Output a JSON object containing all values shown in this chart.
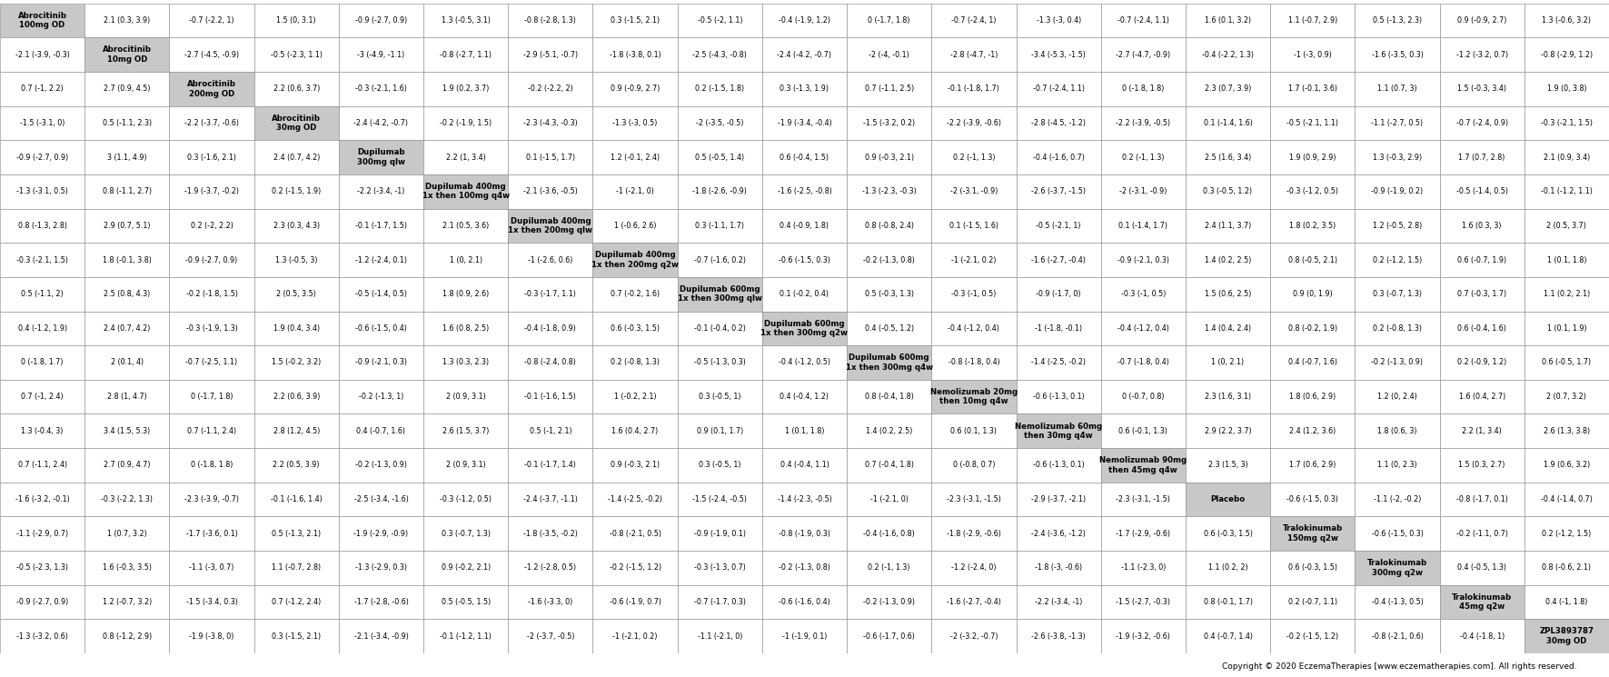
{
  "n": 19,
  "cell_data": [
    [
      "Abrocitinib\n100mg OD",
      "2.1 (0.3, 3.9)",
      "-0.7 (-2.2, 1)",
      "1.5 (0, 3.1)",
      "-0.9 (-2.7, 0.9)",
      "1.3 (-0.5, 3.1)",
      "-0.8 (-2.8, 1.3)",
      "0.3 (-1.5, 2.1)",
      "-0.5 (-2, 1.1)",
      "-0.4 (-1.9, 1.2)",
      "0 (-1.7, 1.8)",
      "-0.7 (-2.4, 1)",
      "-1.3 (-3, 0.4)",
      "-0.7 (-2.4, 1.1)",
      "1.6 (0.1, 3.2)",
      "1.1 (-0.7, 2.9)",
      "0.5 (-1.3, 2.3)",
      "0.9 (-0.9, 2.7)",
      "1.3 (-0.6, 3.2)"
    ],
    [
      "-2.1 (-3.9, -0.3)",
      "Abrocitinib\n10mg OD",
      "-2.7 (-4.5, -0.9)",
      "-0.5 (-2.3, 1.1)",
      "-3 (-4.9, -1.1)",
      "-0.8 (-2.7, 1.1)",
      "-2.9 (-5.1, -0.7)",
      "-1.8 (-3.8, 0.1)",
      "-2.5 (-4.3, -0.8)",
      "-2.4 (-4.2, -0.7)",
      "-2 (-4, -0.1)",
      "-2.8 (-4.7, -1)",
      "-3.4 (-5.3, -1.5)",
      "-2.7 (-4.7, -0.9)",
      "-0.4 (-2.2, 1.3)",
      "-1 (-3, 0.9)",
      "-1.6 (-3.5, 0.3)",
      "-1.2 (-3.2, 0.7)",
      "-0.8 (-2.9, 1.2)"
    ],
    [
      "0.7 (-1, 2.2)",
      "2.7 (0.9, 4.5)",
      "Abrocitinib\n200mg OD",
      "2.2 (0.6, 3.7)",
      "-0.3 (-2.1, 1.6)",
      "1.9 (0.2, 3.7)",
      "-0.2 (-2.2, 2)",
      "0.9 (-0.9, 2.7)",
      "0.2 (-1.5, 1.8)",
      "0.3 (-1.3, 1.9)",
      "0.7 (-1.1, 2.5)",
      "-0.1 (-1.8, 1.7)",
      "-0.7 (-2.4, 1.1)",
      "0 (-1.8, 1.8)",
      "2.3 (0.7, 3.9)",
      "1.7 (-0.1, 3.6)",
      "1.1 (0.7, 3)",
      "1.5 (-0.3, 3.4)",
      "1.9 (0, 3.8)"
    ],
    [
      "-1.5 (-3.1, 0)",
      "0.5 (-1.1, 2.3)",
      "-2.2 (-3.7, -0.6)",
      "Abrocitinib\n30mg OD",
      "-2.4 (-4.2, -0.7)",
      "-0.2 (-1.9, 1.5)",
      "-2.3 (-4.3, -0.3)",
      "-1.3 (-3, 0.5)",
      "-2 (-3.5, -0.5)",
      "-1.9 (-3.4, -0.4)",
      "-1.5 (-3.2, 0.2)",
      "-2.2 (-3.9, -0.6)",
      "-2.8 (-4.5, -1.2)",
      "-2.2 (-3.9, -0.5)",
      "0.1 (-1.4, 1.6)",
      "-0.5 (-2.1, 1.1)",
      "-1.1 (-2.7, 0.5)",
      "-0.7 (-2.4, 0.9)",
      "-0.3 (-2.1, 1.5)"
    ],
    [
      "-0.9 (-2.7, 0.9)",
      "3 (1.1, 4.9)",
      "0.3 (-1.6, 2.1)",
      "2.4 (0.7, 4.2)",
      "Dupilumab\n300mg qlw",
      "2.2 (1, 3.4)",
      "0.1 (-1.5, 1.7)",
      "1.2 (-0.1, 2.4)",
      "0.5 (-0.5, 1.4)",
      "0.6 (-0.4, 1.5)",
      "0.9 (-0.3, 2.1)",
      "0.2 (-1, 1.3)",
      "-0.4 (-1.6, 0.7)",
      "0.2 (-1, 1.3)",
      "2.5 (1.6, 3.4)",
      "1.9 (0.9, 2.9)",
      "1.3 (-0.3, 2.9)",
      "1.7 (0.7, 2.8)",
      "2.1 (0.9, 3.4)"
    ],
    [
      "-1.3 (-3.1, 0.5)",
      "0.8 (-1.1, 2.7)",
      "-1.9 (-3.7, -0.2)",
      "0.2 (-1.5, 1.9)",
      "-2.2 (-3.4, -1)",
      "Dupilumab 400mg\n1x then 100mg q4w",
      "-2.1 (-3.6, -0.5)",
      "-1 (-2.1, 0)",
      "-1.8 (-2.6, -0.9)",
      "-1.6 (-2.5, -0.8)",
      "-1.3 (-2.3, -0.3)",
      "-2 (-3.1, -0.9)",
      "-2.6 (-3.7, -1.5)",
      "-2 (-3.1, -0.9)",
      "0.3 (-0.5, 1.2)",
      "-0.3 (-1.2, 0.5)",
      "-0.9 (-1.9, 0.2)",
      "-0.5 (-1.4, 0.5)",
      "-0.1 (-1.2, 1.1)"
    ],
    [
      "0.8 (-1.3, 2.8)",
      "2.9 (0.7, 5.1)",
      "0.2 (-2, 2.2)",
      "2.3 (0.3, 4.3)",
      "-0.1 (-1.7, 1.5)",
      "2.1 (0.5, 3.6)",
      "Dupilumab 400mg\n1x then 200mg qlw",
      "1 (-0.6, 2.6)",
      "0.3 (-1.1, 1.7)",
      "0.4 (-0.9, 1.8)",
      "0.8 (-0.8, 2.4)",
      "0.1 (-1.5, 1.6)",
      "-0.5 (-2.1, 1)",
      "0.1 (-1.4, 1.7)",
      "2.4 (1.1, 3.7)",
      "1.8 (0.2, 3.5)",
      "1.2 (-0.5, 2.8)",
      "1.6 (0.3, 3)",
      "2 (0.5, 3.7)"
    ],
    [
      "-0.3 (-2.1, 1.5)",
      "1.8 (-0.1, 3.8)",
      "-0.9 (-2.7, 0.9)",
      "1.3 (-0.5, 3)",
      "-1.2 (-2.4, 0.1)",
      "1 (0, 2.1)",
      "-1 (-2.6, 0.6)",
      "Dupilumab 400mg\n1x then 200mg q2w",
      "-0.7 (-1.6, 0.2)",
      "-0.6 (-1.5, 0.3)",
      "-0.2 (-1.3, 0.8)",
      "-1 (-2.1, 0.2)",
      "-1.6 (-2.7, -0.4)",
      "-0.9 (-2.1, 0.3)",
      "1.4 (0.2, 2.5)",
      "0.8 (-0.5, 2.1)",
      "0.2 (-1.2, 1.5)",
      "0.6 (-0.7, 1.9)",
      "1 (0.1, 1.8)"
    ],
    [
      "0.5 (-1.1, 2)",
      "2.5 (0.8, 4.3)",
      "-0.2 (-1.8, 1.5)",
      "2 (0.5, 3.5)",
      "-0.5 (-1.4, 0.5)",
      "1.8 (0.9, 2.6)",
      "-0.3 (-1.7, 1.1)",
      "0.7 (-0.2, 1.6)",
      "Dupilumab 600mg\n1x then 300mg qlw",
      "0.1 (-0.2, 0.4)",
      "0.5 (-0.3, 1.3)",
      "-0.3 (-1, 0.5)",
      "-0.9 (-1.7, 0)",
      "-0.3 (-1, 0.5)",
      "1.5 (0.6, 2.5)",
      "0.9 (0, 1.9)",
      "0.3 (-0.7, 1.3)",
      "0.7 (-0.3, 1.7)",
      "1.1 (0.2, 2.1)"
    ],
    [
      "0.4 (-1.2, 1.9)",
      "2.4 (0.7, 4.2)",
      "-0.3 (-1.9, 1.3)",
      "1.9 (0.4, 3.4)",
      "-0.6 (-1.5, 0.4)",
      "1.6 (0.8, 2.5)",
      "-0.4 (-1.8, 0.9)",
      "0.6 (-0.3, 1.5)",
      "-0.1 (-0.4, 0.2)",
      "Dupilumab 600mg\n1x then 300mg q2w",
      "0.4 (-0.5, 1.2)",
      "-0.4 (-1.2, 0.4)",
      "-1 (-1.8, -0.1)",
      "-0.4 (-1.2, 0.4)",
      "1.4 (0.4, 2.4)",
      "0.8 (-0.2, 1.9)",
      "0.2 (-0.8, 1.3)",
      "0.6 (-0.4, 1.6)",
      "1 (0.1, 1.9)"
    ],
    [
      "0 (-1.8, 1.7)",
      "2 (0.1, 4)",
      "-0.7 (-2.5, 1.1)",
      "1.5 (-0.2, 3.2)",
      "-0.9 (-2.1, 0.3)",
      "1.3 (0.3, 2.3)",
      "-0.8 (-2.4, 0.8)",
      "0.2 (-0.8, 1.3)",
      "-0.5 (-1.3, 0.3)",
      "-0.4 (-1.2, 0.5)",
      "Dupilumab 600mg\n1x then 300mg q4w",
      "-0.8 (-1.8, 0.4)",
      "-1.4 (-2.5, -0.2)",
      "-0.7 (-1.8, 0.4)",
      "1 (0, 2.1)",
      "0.4 (-0.7, 1.6)",
      "-0.2 (-1.3, 0.9)",
      "0.2 (-0.9, 1.2)",
      "0.6 (-0.5, 1.7)"
    ],
    [
      "0.7 (-1, 2.4)",
      "2.8 (1, 4.7)",
      "0 (-1.7, 1.8)",
      "2.2 (0.6, 3.9)",
      "-0.2 (-1.3, 1)",
      "2 (0.9, 3.1)",
      "-0.1 (-1.6, 1.5)",
      "1 (-0.2, 2.1)",
      "0.3 (-0.5, 1)",
      "0.4 (-0.4, 1.2)",
      "0.8 (-0.4, 1.8)",
      "Nemolizumab 20mg\nthen 10mg q4w",
      "-0.6 (-1.3, 0.1)",
      "0 (-0.7, 0.8)",
      "2.3 (1.6, 3.1)",
      "1.8 (0.6, 2.9)",
      "1.2 (0, 2.4)",
      "1.6 (0.4, 2.7)",
      "2 (0.7, 3.2)"
    ],
    [
      "1.3 (-0.4, 3)",
      "3.4 (1.5, 5.3)",
      "0.7 (-1.1, 2.4)",
      "2.8 (1.2, 4.5)",
      "0.4 (-0.7, 1.6)",
      "2.6 (1.5, 3.7)",
      "0.5 (-1, 2.1)",
      "1.6 (0.4, 2.7)",
      "0.9 (0.1, 1.7)",
      "1 (0.1, 1.8)",
      "1.4 (0.2, 2.5)",
      "0.6 (0.1, 1.3)",
      "Nemolizumab 60mg\nthen 30mg q4w",
      "0.6 (-0.1, 1.3)",
      "2.9 (2.2, 3.7)",
      "2.4 (1.2, 3.6)",
      "1.8 (0.6, 3)",
      "2.2 (1, 3.4)",
      "2.6 (1.3, 3.8)"
    ],
    [
      "0.7 (-1.1, 2.4)",
      "2.7 (0.9, 4.7)",
      "0 (-1.8, 1.8)",
      "2.2 (0.5, 3.9)",
      "-0.2 (-1.3, 0.9)",
      "2 (0.9, 3.1)",
      "-0.1 (-1.7, 1.4)",
      "0.9 (-0.3, 2.1)",
      "0.3 (-0.5, 1)",
      "0.4 (-0.4, 1.1)",
      "0.7 (-0.4, 1.8)",
      "0 (-0.8, 0.7)",
      "-0.6 (-1.3, 0.1)",
      "Nemolizumab 90mg\nthen 45mg q4w",
      "2.3 (1.5, 3)",
      "1.7 (0.6, 2.9)",
      "1.1 (0, 2.3)",
      "1.5 (0.3, 2.7)",
      "1.9 (0.6, 3.2)"
    ],
    [
      "-1.6 (-3.2, -0.1)",
      "-0.3 (-2.2, 1.3)",
      "-2.3 (-3.9, -0.7)",
      "-0.1 (-1.6, 1.4)",
      "-2.5 (-3.4, -1.6)",
      "-0.3 (-1.2, 0.5)",
      "-2.4 (-3.7, -1.1)",
      "-1.4 (-2.5, -0.2)",
      "-1.5 (-2.4, -0.5)",
      "-1.4 (-2.3, -0.5)",
      "-1 (-2.1, 0)",
      "-2.3 (-3.1, -1.5)",
      "-2.9 (-3.7, -2.1)",
      "-2.3 (-3.1, -1.5)",
      "Placebo",
      "-0.6 (-1.5, 0.3)",
      "-1.1 (-2, -0.2)",
      "-0.8 (-1.7, 0.1)",
      "-0.4 (-1.4, 0.7)"
    ],
    [
      "-1.1 (-2.9, 0.7)",
      "1 (0.7, 3.2)",
      "-1.7 (-3.6, 0.1)",
      "0.5 (-1.3, 2.1)",
      "-1.9 (-2.9, -0.9)",
      "0.3 (-0.7, 1.3)",
      "-1.8 (-3.5, -0.2)",
      "-0.8 (-2.1, 0.5)",
      "-0.9 (-1.9, 0.1)",
      "-0.8 (-1.9, 0.3)",
      "-0.4 (-1.6, 0.8)",
      "-1.8 (-2.9, -0.6)",
      "-2.4 (-3.6, -1.2)",
      "-1.7 (-2.9, -0.6)",
      "0.6 (-0.3, 1.5)",
      "Tralokinumab\n150mg q2w",
      "-0.6 (-1.5, 0.3)",
      "-0.2 (-1.1, 0.7)",
      "0.2 (-1.2, 1.5)"
    ],
    [
      "-0.5 (-2.3, 1.3)",
      "1.6 (-0.3, 3.5)",
      "-1.1 (-3, 0.7)",
      "1.1 (-0.7, 2.8)",
      "-1.3 (-2.9, 0.3)",
      "0.9 (-0.2, 2.1)",
      "-1.2 (-2.8, 0.5)",
      "-0.2 (-1.5, 1.2)",
      "-0.3 (-1.3, 0.7)",
      "-0.2 (-1.3, 0.8)",
      "0.2 (-1, 1.3)",
      "-1.2 (-2.4, 0)",
      "-1.8 (-3, -0.6)",
      "-1.1 (-2.3, 0)",
      "1.1 (0.2, 2)",
      "0.6 (-0.3, 1.5)",
      "Tralokinumab\n300mg q2w",
      "0.4 (-0.5, 1.3)",
      "0.8 (-0.6, 2.1)"
    ],
    [
      "-0.9 (-2.7, 0.9)",
      "1.2 (-0.7, 3.2)",
      "-1.5 (-3.4, 0.3)",
      "0.7 (-1.2, 2.4)",
      "-1.7 (-2.8, -0.6)",
      "0.5 (-0.5, 1.5)",
      "-1.6 (-3.3, 0)",
      "-0.6 (-1.9, 0.7)",
      "-0.7 (-1.7, 0.3)",
      "-0.6 (-1.6, 0.4)",
      "-0.2 (-1.3, 0.9)",
      "-1.6 (-2.7, -0.4)",
      "-2.2 (-3.4, -1)",
      "-1.5 (-2.7, -0.3)",
      "0.8 (-0.1, 1.7)",
      "0.2 (-0.7, 1.1)",
      "-0.4 (-1.3, 0.5)",
      "Tralokinumab\n45mg q2w",
      "0.4 (-1, 1.8)"
    ],
    [
      "-1.3 (-3.2, 0.6)",
      "0.8 (-1.2, 2.9)",
      "-1.9 (-3.8, 0)",
      "0.3 (-1.5, 2.1)",
      "-2.1 (-3.4, -0.9)",
      "-0.1 (-1.2, 1.1)",
      "-2 (-3.7, -0.5)",
      "-1 (-2.1, 0.2)",
      "-1.1 (-2.1, 0)",
      "-1 (-1.9, 0.1)",
      "-0.6 (-1.7, 0.6)",
      "-2 (-3.2, -0.7)",
      "-2.6 (-3.8, -1.3)",
      "-1.9 (-3.2, -0.6)",
      "0.4 (-0.7, 1.4)",
      "-0.2 (-1.5, 1.2)",
      "-0.8 (-2.1, 0.6)",
      "-0.4 (-1.8, 1)",
      "ZPL3893787\n30mg OD"
    ]
  ],
  "diag_bg": "#c8c8c8",
  "default_bg": "#ffffff",
  "border_color": "#888888",
  "text_color": "#000000",
  "copyright": "Copyright © 2020 EczemaTherapies [www.eczematherapies.com]. All rights reserved.",
  "cell_fontsize": 5.8,
  "diag_fontsize": 6.2,
  "fig_width": 17.71,
  "fig_height": 7.45
}
